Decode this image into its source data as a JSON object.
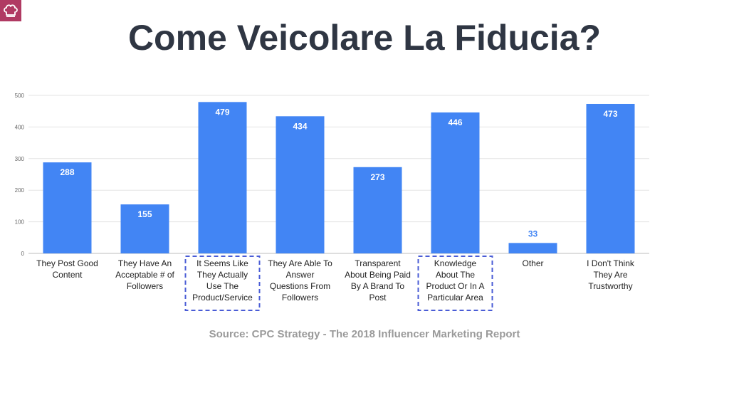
{
  "slide": {
    "title": "Come Veicolare La Fiducia?",
    "source": "Source: CPC Strategy - The 2018 Influencer Marketing Report",
    "logo_icon": "chef-hat-icon"
  },
  "colors": {
    "bar": "#4285f4",
    "bar_label_inside": "#ffffff",
    "bar_label_outside": "#4285f4",
    "grid": "#e3e3e3",
    "highlight_box": "#4a5cd6",
    "logo_bg": "#b03a63"
  },
  "chart_data": {
    "type": "bar",
    "categories": [
      [
        "They Post Good",
        "Content"
      ],
      [
        "They Have An",
        "Acceptable # of",
        "Followers"
      ],
      [
        "It Seems Like",
        "They Actually",
        "Use The",
        "Product/Service"
      ],
      [
        "They Are Able To",
        "Answer",
        "Questions From",
        "Followers"
      ],
      [
        "Transparent",
        "About Being Paid",
        "By A Brand To",
        "Post"
      ],
      [
        "Knowledge",
        "About The",
        "Product Or In A",
        "Particular Area"
      ],
      [
        "Other"
      ],
      [
        "I Don't Think",
        "They Are",
        "Trustworthy"
      ]
    ],
    "values": [
      288,
      155,
      479,
      434,
      273,
      446,
      33,
      473
    ],
    "value_labels": [
      "288",
      "155",
      "479",
      "434",
      "273",
      "446",
      "33",
      "473"
    ],
    "highlighted": [
      false,
      false,
      true,
      false,
      false,
      true,
      false,
      false
    ],
    "ylim": [
      0,
      500
    ],
    "yticks": [
      0,
      100,
      200,
      300,
      400,
      500
    ],
    "ytick_labels": [
      "0",
      "100",
      "200",
      "300",
      "400",
      "500"
    ],
    "grid": true,
    "legend": "none",
    "title": "",
    "xlabel": "",
    "ylabel": ""
  }
}
